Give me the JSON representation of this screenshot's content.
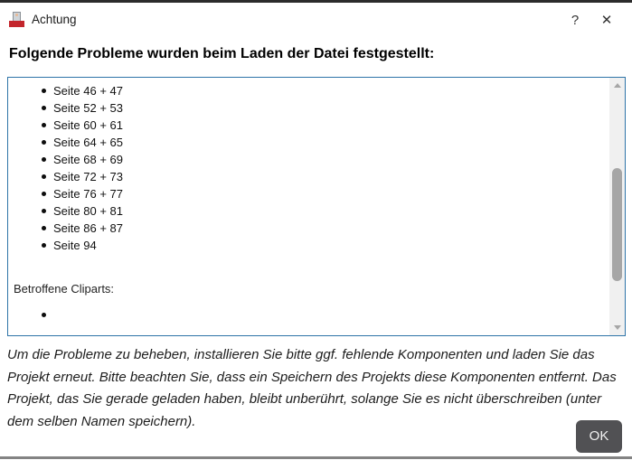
{
  "window": {
    "title": "Achtung",
    "help_label": "?",
    "close_label": "✕"
  },
  "heading": "Folgende Probleme wurden beim Laden der Datei festgestellt:",
  "problems": {
    "pages": [
      "Seite 46 + 47",
      "Seite 52 + 53",
      "Seite 60 + 61",
      "Seite 64 + 65",
      "Seite 68 + 69",
      "Seite 72 + 73",
      "Seite 76 + 77",
      "Seite 80 + 81",
      "Seite 86 + 87",
      "Seite 94"
    ],
    "cliparts_label": "Betroffene Cliparts:",
    "cliparts": [
      ""
    ]
  },
  "footer": {
    "note": "Um die Probleme zu beheben, installieren Sie bitte ggf. fehlende Komponenten und laden Sie das Projekt erneut. Bitte beachten Sie, dass ein Speichern des Projekts diese Komponenten entfernt. Das Projekt, das Sie gerade geladen haben, bleibt unberührt, solange Sie es nicht überschreiben (unter dem selben Namen speichern).",
    "ok_label": "OK"
  },
  "colors": {
    "scrollbox_border": "#2e74a8",
    "ok_button_bg": "#515154",
    "app_icon_red": "#c3262c",
    "scrollbar_thumb": "#a6a6a6",
    "scrollbar_track": "#f0f0f0",
    "titlebar_top_edge": "#2b2b2b",
    "bottom_edge": "#838383"
  }
}
